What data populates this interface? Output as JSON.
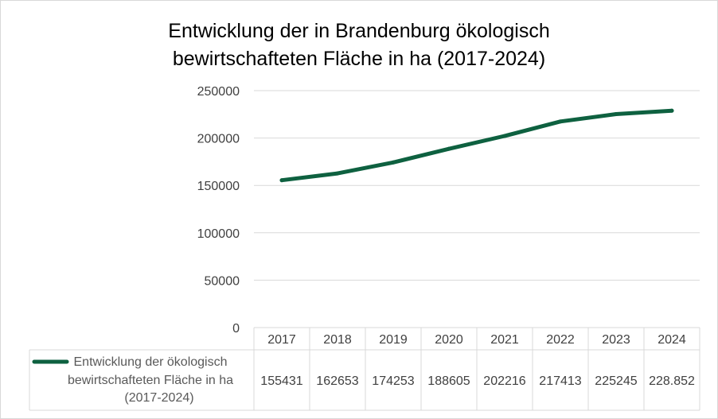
{
  "colors": {
    "series": "#0e6140",
    "grid": "#d9d9d9",
    "text": "#404040"
  },
  "chart_data": {
    "type": "line",
    "title_lines": [
      "Entwicklung der in Brandenburg ökologisch",
      "bewirtschafteten Fläche in ha (2017-2024)"
    ],
    "categories": [
      "2017",
      "2018",
      "2019",
      "2020",
      "2021",
      "2022",
      "2023",
      "2024"
    ],
    "y_ticks": [
      "250000",
      "200000",
      "150000",
      "100000",
      "50000",
      "0"
    ],
    "ylim": [
      0,
      250000
    ],
    "grid": true,
    "legend_placement": "data-table",
    "series": [
      {
        "name_lines": [
          "Entwicklung der ökologisch",
          "bewirtschafteten Fläche in ha",
          "(2017-2024)"
        ],
        "values": [
          155431,
          162653,
          174253,
          188605,
          202216,
          217413,
          225245,
          228852
        ],
        "value_labels": [
          "155431",
          "162653",
          "174253",
          "188605",
          "202216",
          "217413",
          "225245",
          "228.852"
        ]
      }
    ]
  }
}
